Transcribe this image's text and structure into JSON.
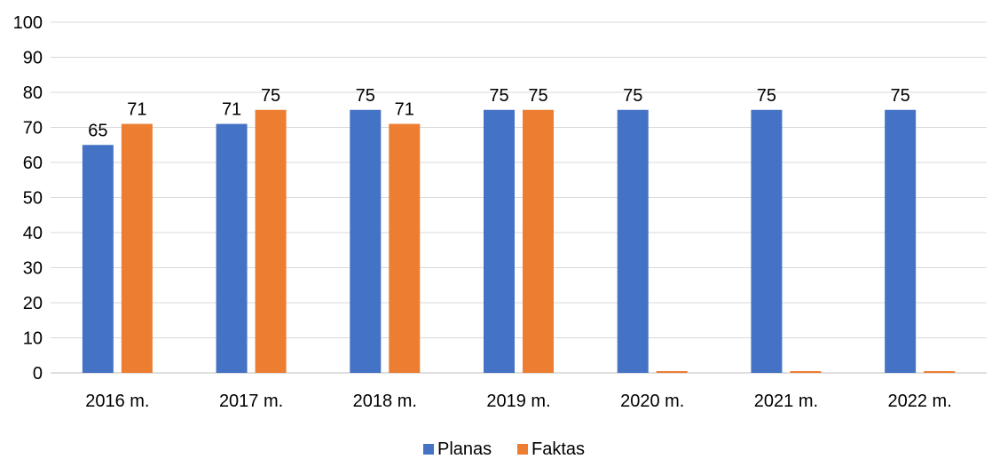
{
  "chart_data": {
    "type": "bar",
    "title": "",
    "xlabel": "",
    "ylabel": "",
    "ylim": [
      0,
      100
    ],
    "yticks": [
      0,
      10,
      20,
      30,
      40,
      50,
      60,
      70,
      80,
      90,
      100
    ],
    "grid": true,
    "legend_position": "bottom",
    "categories": [
      "2016 m.",
      "2017 m.",
      "2018 m.",
      "2019 m.",
      "2020 m.",
      "2021 m.",
      "2022 m."
    ],
    "series": [
      {
        "name": "Planas",
        "color": "#4472C4",
        "values": [
          65,
          71,
          75,
          75,
          75,
          75,
          75
        ],
        "labels": [
          "65",
          "71",
          "75",
          "75",
          "75",
          "75",
          "75"
        ]
      },
      {
        "name": "Faktas",
        "color": "#ED7D31",
        "values": [
          71,
          75,
          71,
          75,
          0,
          0,
          0
        ],
        "labels": [
          "71",
          "75",
          "71",
          "75",
          "",
          "",
          ""
        ]
      }
    ]
  }
}
